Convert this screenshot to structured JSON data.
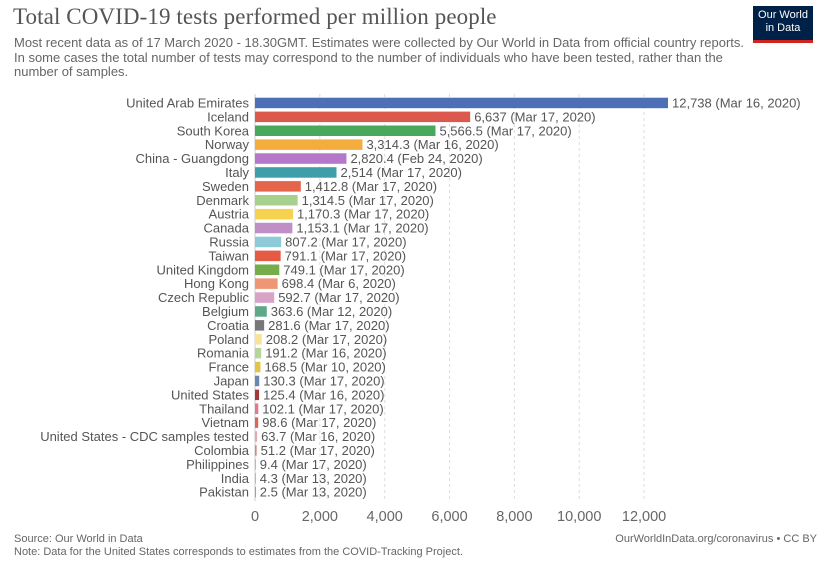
{
  "header": {
    "title": "Total COVID-19 tests performed per million people",
    "subtitle": "Most recent data as of 17 March 2020 - 18.30GMT. Estimates were collected by Our World in Data from official country reports. In some cases the total number of tests may correspond to the number of individuals who have been tested, rather than the number of samples.",
    "logo_line1": "Our World",
    "logo_line2": "in Data"
  },
  "footer": {
    "source": "Source: Our World in Data",
    "note": "Note: Data for the United States corresponds to estimates from the COVID-Tracking Project.",
    "url_license": "OurWorldInData.org/coronavirus • CC BY"
  },
  "colors": {
    "logo_bg": "#002147",
    "logo_accent": "#ce261e",
    "grid": "#dddddd"
  },
  "chart_data": {
    "type": "bar",
    "orientation": "horizontal",
    "xlim": [
      0,
      12738
    ],
    "xticks": [
      0,
      2000,
      4000,
      6000,
      8000,
      10000,
      12000
    ],
    "xtick_labels": [
      "0",
      "2,000",
      "4,000",
      "6,000",
      "8,000",
      "10,000",
      "12,000"
    ],
    "grid": true,
    "bars": [
      {
        "category": "United Arab Emirates",
        "value": 12738,
        "label": "12,738 (Mar 16, 2020)",
        "color": "#4c6fb5"
      },
      {
        "category": "Iceland",
        "value": 6637,
        "label": "6,637 (Mar 17, 2020)",
        "color": "#dc5a4d"
      },
      {
        "category": "South Korea",
        "value": 5566.5,
        "label": "5,566.5 (Mar 17, 2020)",
        "color": "#4aa85c"
      },
      {
        "category": "Norway",
        "value": 3314.3,
        "label": "3,314.3 (Mar 16, 2020)",
        "color": "#f4ad3d"
      },
      {
        "category": "China - Guangdong",
        "value": 2820.4,
        "label": "2,820.4 (Feb 24, 2020)",
        "color": "#b578c9"
      },
      {
        "category": "Italy",
        "value": 2514,
        "label": "2,514 (Mar 17, 2020)",
        "color": "#3e9fa8"
      },
      {
        "category": "Sweden",
        "value": 1412.8,
        "label": "1,412.8 (Mar 17, 2020)",
        "color": "#e4644c"
      },
      {
        "category": "Denmark",
        "value": 1314.5,
        "label": "1,314.5 (Mar 17, 2020)",
        "color": "#a6d08c"
      },
      {
        "category": "Austria",
        "value": 1170.3,
        "label": "1,170.3 (Mar 17, 2020)",
        "color": "#f6d24f"
      },
      {
        "category": "Canada",
        "value": 1153.1,
        "label": "1,153.1 (Mar 17, 2020)",
        "color": "#bf8fc5"
      },
      {
        "category": "Russia",
        "value": 807.2,
        "label": "807.2 (Mar 17, 2020)",
        "color": "#8ecbd8"
      },
      {
        "category": "Taiwan",
        "value": 791.1,
        "label": "791.1 (Mar 17, 2020)",
        "color": "#e45a44"
      },
      {
        "category": "United Kingdom",
        "value": 749.1,
        "label": "749.1 (Mar 17, 2020)",
        "color": "#75ad4a"
      },
      {
        "category": "Hong Kong",
        "value": 698.4,
        "label": "698.4 (Mar 6, 2020)",
        "color": "#ef9674"
      },
      {
        "category": "Czech Republic",
        "value": 592.7,
        "label": "592.7 (Mar 17, 2020)",
        "color": "#d9a3c8"
      },
      {
        "category": "Belgium",
        "value": 363.6,
        "label": "363.6 (Mar 12, 2020)",
        "color": "#5fa98a"
      },
      {
        "category": "Croatia",
        "value": 281.6,
        "label": "281.6 (Mar 17, 2020)",
        "color": "#777777"
      },
      {
        "category": "Poland",
        "value": 208.2,
        "label": "208.2 (Mar 17, 2020)",
        "color": "#fbe19a"
      },
      {
        "category": "Romania",
        "value": 191.2,
        "label": "191.2 (Mar 16, 2020)",
        "color": "#b5d59a"
      },
      {
        "category": "France",
        "value": 168.5,
        "label": "168.5 (Mar 10, 2020)",
        "color": "#e2c44a"
      },
      {
        "category": "Japan",
        "value": 130.3,
        "label": "130.3 (Mar 17, 2020)",
        "color": "#6a86b2"
      },
      {
        "category": "United States",
        "value": 125.4,
        "label": "125.4 (Mar 16, 2020)",
        "color": "#a3393c"
      },
      {
        "category": "Thailand",
        "value": 102.1,
        "label": "102.1 (Mar 17, 2020)",
        "color": "#e27a8a"
      },
      {
        "category": "Vietnam",
        "value": 98.6,
        "label": "98.6 (Mar 17, 2020)",
        "color": "#d96656"
      },
      {
        "category": "United States - CDC samples tested",
        "value": 63.7,
        "label": "63.7 (Mar 16, 2020)",
        "color": "#e9a8a8"
      },
      {
        "category": "Colombia",
        "value": 51.2,
        "label": "51.2 (Mar 17, 2020)",
        "color": "#d28884"
      },
      {
        "category": "Philippines",
        "value": 9.4,
        "label": "9.4 (Mar 17, 2020)",
        "color": "#7fb4d8"
      },
      {
        "category": "India",
        "value": 4.3,
        "label": "4.3 (Mar 13, 2020)",
        "color": "#d6a06b"
      },
      {
        "category": "Pakistan",
        "value": 2.5,
        "label": "2.5 (Mar 13, 2020)",
        "color": "#888888"
      }
    ]
  }
}
